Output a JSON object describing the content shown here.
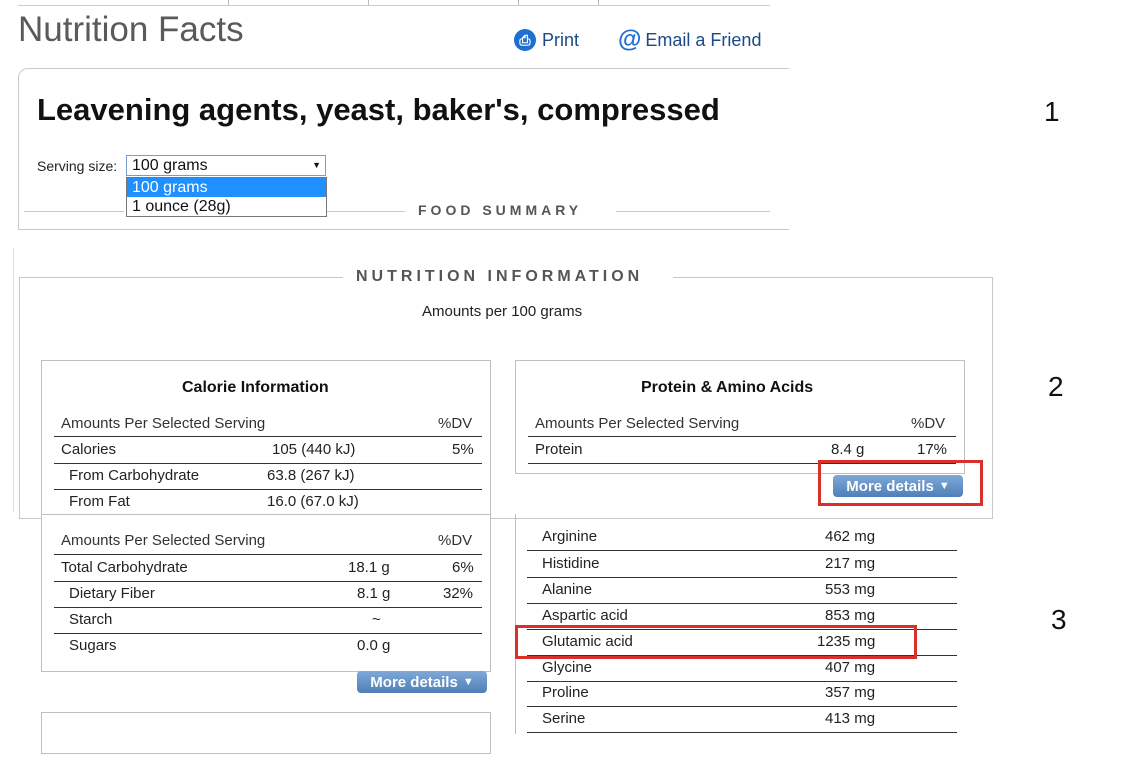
{
  "panel1": {
    "page_title": "Nutrition Facts",
    "print_label": "Print",
    "email_label": "Email a Friend",
    "food_name": "Leavening agents, yeast, baker's, compressed",
    "serving_label": "Serving size:",
    "serving_selected": "100 grams",
    "serving_options": [
      "100 grams",
      "1 ounce (28g)"
    ],
    "food_summary_title": "FOOD SUMMARY"
  },
  "panel2": {
    "section_title": "NUTRITION INFORMATION",
    "amounts_per": "Amounts per 100 grams",
    "calorie": {
      "title": "Calorie Information",
      "hdr_left": "Amounts Per Selected Serving",
      "hdr_right": "%DV",
      "rows": [
        {
          "name": "Calories",
          "amount": "105 (440 kJ)",
          "dv": "5%"
        },
        {
          "name": "From Carbohydrate",
          "amount": "63.8 (267 kJ)",
          "dv": ""
        },
        {
          "name": "From Fat",
          "amount": "16.0 (67.0 kJ)",
          "dv": ""
        }
      ]
    },
    "protein": {
      "title": "Protein & Amino Acids",
      "hdr_left": "Amounts Per Selected Serving",
      "hdr_right": "%DV",
      "rows": [
        {
          "name": "Protein",
          "amount": "8.4 g",
          "dv": "17%"
        }
      ],
      "more_details": "More details"
    }
  },
  "panel3": {
    "carbs": {
      "hdr_left": "Amounts Per Selected Serving",
      "hdr_right": "%DV",
      "rows": [
        {
          "name": "Total Carbohydrate",
          "amount": "18.1 g",
          "dv": "6%"
        },
        {
          "name": "Dietary Fiber",
          "amount": "8.1 g",
          "dv": "32%"
        },
        {
          "name": "Starch",
          "amount": "~",
          "dv": ""
        },
        {
          "name": "Sugars",
          "amount": "0.0 g",
          "dv": ""
        }
      ],
      "more_details": "More details"
    },
    "amino": {
      "rows": [
        {
          "name": "Arginine",
          "amount": "462 mg"
        },
        {
          "name": "Histidine",
          "amount": "217 mg"
        },
        {
          "name": "Alanine",
          "amount": "553 mg"
        },
        {
          "name": "Aspartic acid",
          "amount": "853 mg"
        },
        {
          "name": "Glutamic acid",
          "amount": "1235 mg"
        },
        {
          "name": "Glycine",
          "amount": "407 mg"
        },
        {
          "name": "Proline",
          "amount": "357 mg"
        },
        {
          "name": "Serine",
          "amount": "413 mg"
        }
      ]
    }
  },
  "step_labels": [
    "1",
    "2",
    "3"
  ],
  "colors": {
    "highlight": "#d9302a",
    "button": "#4f7fb8",
    "select_highlight": "#1e90ff"
  },
  "icons": {
    "print": "print-icon",
    "email": "at-sign-icon",
    "dropdown": "triangle-down-icon"
  }
}
